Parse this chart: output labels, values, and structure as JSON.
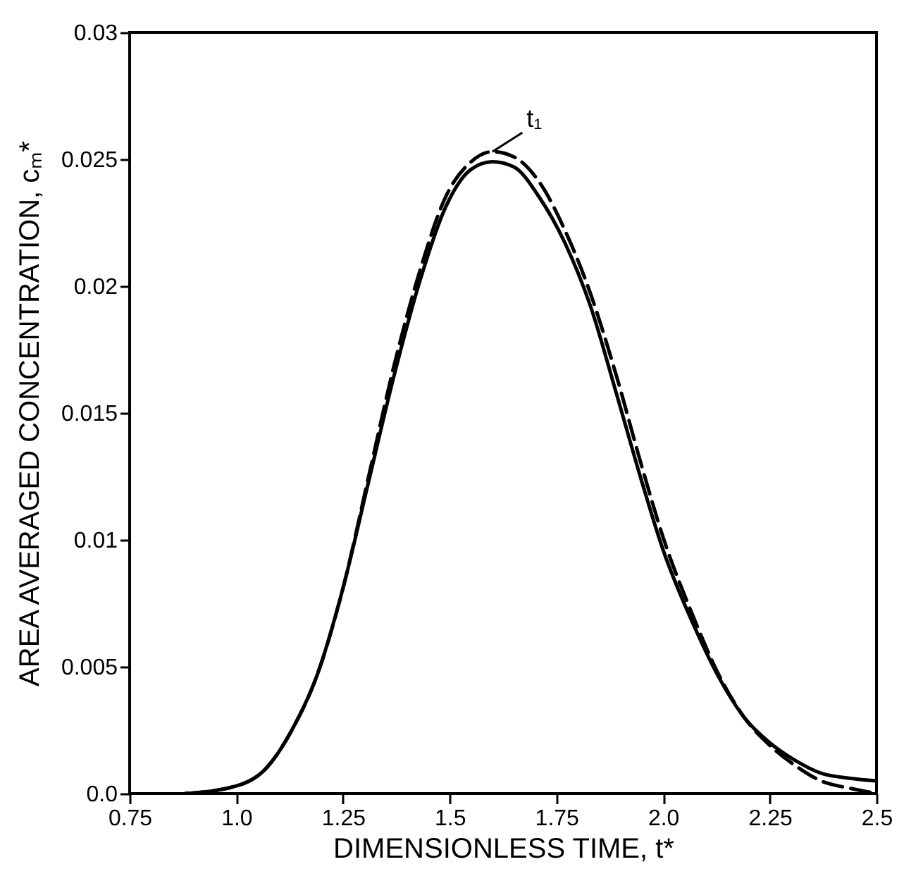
{
  "chart_data": {
    "type": "line",
    "xlabel": "DIMENSIONLESS TIME, t*",
    "ylabel": "AREA AVERAGED CONCENTRATION, cₘ*",
    "xlim": [
      0.75,
      2.5
    ],
    "xticks": [
      0.75,
      {
        "value": 1,
        "label": "1.0"
      },
      1.25,
      1.5,
      1.75,
      {
        "value": 2,
        "label": "2.0"
      },
      2.25,
      2.5
    ],
    "ylim": [
      0,
      0.03
    ],
    "yticks": [
      {
        "value": 0,
        "label": "0.0"
      },
      0.005,
      0.01,
      0.015,
      0.02,
      0.025,
      0.03
    ],
    "grid": false,
    "annotations": [
      {
        "text": "t₁",
        "x": 1.6,
        "y": 0.0253
      }
    ],
    "series": [
      {
        "color": "#000000",
        "line_style": "solid",
        "x": [
          0.88,
          1.0,
          1.07,
          1.13,
          1.19,
          1.25,
          1.31,
          1.37,
          1.43,
          1.49,
          1.55,
          1.6,
          1.65,
          1.71,
          1.77,
          1.83,
          1.89,
          1.95,
          2.0,
          2.07,
          2.13,
          2.19,
          2.25,
          2.31,
          2.37,
          2.44,
          2.5
        ],
        "values": [
          0,
          0.0003,
          0.001,
          0.0025,
          0.0047,
          0.0081,
          0.0123,
          0.0165,
          0.0202,
          0.0231,
          0.0246,
          0.0249,
          0.0247,
          0.0235,
          0.0217,
          0.0192,
          0.0158,
          0.0123,
          0.0096,
          0.0067,
          0.0046,
          0.003,
          0.002,
          0.0013,
          0.0008,
          0.0006,
          0.0005
        ]
      },
      {
        "color": "#000000",
        "line_style": "dashed",
        "x": [
          0.88,
          1.0,
          1.07,
          1.13,
          1.19,
          1.25,
          1.31,
          1.37,
          1.43,
          1.49,
          1.55,
          1.6,
          1.65,
          1.71,
          1.77,
          1.83,
          1.89,
          1.95,
          2.0,
          2.07,
          2.13,
          2.19,
          2.25,
          2.31,
          2.37,
          2.44,
          2.5
        ],
        "values": [
          0,
          0.0003,
          0.001,
          0.0025,
          0.0047,
          0.0081,
          0.0125,
          0.0169,
          0.0206,
          0.0235,
          0.0249,
          0.0253,
          0.0251,
          0.0241,
          0.0222,
          0.0197,
          0.0165,
          0.0129,
          0.0101,
          0.007,
          0.0047,
          0.003,
          0.0019,
          0.0011,
          0.0005,
          0.0002,
          0
        ]
      }
    ]
  }
}
